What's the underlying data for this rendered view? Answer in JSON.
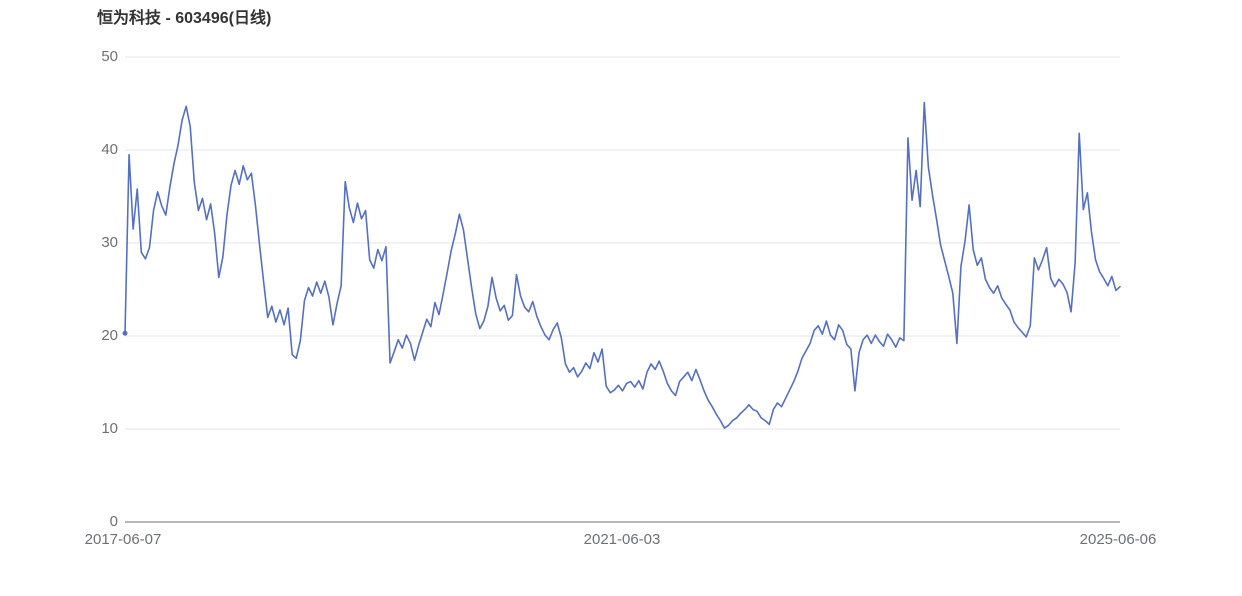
{
  "chart_data": {
    "type": "line",
    "title": "恒为科技 - 603496(日线)",
    "series_name": "恒为科技 603496 日线",
    "xlabel": "",
    "ylabel": "",
    "ylim": [
      0,
      50
    ],
    "y_ticks": [
      "0",
      "10",
      "20",
      "30",
      "40",
      "50"
    ],
    "x_ticks": [
      "2017-06-07",
      "2021-06-03",
      "2025-06-06"
    ],
    "x_range": [
      "2017-06-07",
      "2025-06-06"
    ],
    "legend": "none",
    "grid": "horizontal",
    "line_color": "#5470c6",
    "grid_color": "#e0e6f1",
    "axis_color": "#6e7079",
    "values": [
      20.3,
      39.5,
      31.5,
      35.8,
      29,
      28.3,
      29.5,
      33.5,
      35.5,
      34,
      33,
      36,
      38.5,
      40.5,
      43.2,
      44.7,
      42.5,
      36.5,
      33.5,
      34.8,
      32.5,
      34.2,
      31,
      26.3,
      28.5,
      33,
      36.2,
      37.8,
      36.3,
      38.3,
      36.8,
      37.5,
      34,
      29.8,
      25.8,
      22,
      23.2,
      21.5,
      22.8,
      21.2,
      23,
      18,
      17.6,
      19.5,
      23.8,
      25.2,
      24.3,
      25.8,
      24.6,
      25.9,
      24.2,
      21.2,
      23.5,
      25.4,
      36.6,
      33.8,
      32.2,
      34.3,
      32.6,
      33.5,
      28.2,
      27.3,
      29.3,
      28.1,
      29.6,
      17.1,
      18.3,
      19.6,
      18.7,
      20.1,
      19.2,
      17.4,
      19,
      20.4,
      21.8,
      21,
      23.6,
      22.3,
      24.5,
      26.8,
      29.2,
      31,
      33.1,
      31.4,
      28.3,
      25.2,
      22.4,
      20.8,
      21.6,
      23.2,
      26.3,
      24.1,
      22.7,
      23.3,
      21.7,
      22.2,
      26.6,
      24.3,
      23.1,
      22.6,
      23.7,
      22.1,
      21,
      20.1,
      19.6,
      20.7,
      21.4,
      19.8,
      17,
      16.1,
      16.6,
      15.6,
      16.2,
      17.1,
      16.5,
      18.2,
      17.2,
      18.6,
      14.6,
      13.9,
      14.2,
      14.7,
      14.1,
      14.9,
      15.1,
      14.5,
      15.2,
      14.3,
      16.1,
      17,
      16.4,
      17.3,
      16.2,
      14.9,
      14.1,
      13.6,
      15.1,
      15.6,
      16.1,
      15.2,
      16.4,
      15.3,
      14.1,
      13.1,
      12.4,
      11.6,
      10.9,
      10.1,
      10.4,
      10.9,
      11.2,
      11.7,
      12.1,
      12.6,
      12.1,
      11.9,
      11.2,
      10.9,
      10.5,
      12.1,
      12.8,
      12.4,
      13.3,
      14.2,
      15.1,
      16.2,
      17.6,
      18.4,
      19.2,
      20.6,
      21.1,
      20.2,
      21.6,
      20.1,
      19.6,
      21.2,
      20.6,
      19.1,
      18.6,
      14.1,
      18.2,
      19.6,
      20.1,
      19.2,
      20.1,
      19.4,
      18.9,
      20.2,
      19.6,
      18.8,
      19.8,
      19.5,
      41.3,
      34.6,
      37.8,
      33.9,
      45.1,
      38.2,
      35.2,
      32.6,
      29.8,
      28.1,
      26.4,
      24.6,
      19.2,
      27.5,
      30.2,
      34.1,
      29.3,
      27.6,
      28.4,
      26.1,
      25.2,
      24.6,
      25.4,
      24.1,
      23.4,
      22.8,
      21.5,
      20.9,
      20.4,
      19.9,
      21.1,
      28.4,
      27.1,
      28.2,
      29.5,
      26.2,
      25.3,
      26.1,
      25.6,
      24.7,
      22.6,
      27.9,
      41.8,
      33.6,
      35.4,
      31.2,
      28.2,
      26.9,
      26.2,
      25.4,
      26.4,
      24.9,
      25.3
    ]
  }
}
